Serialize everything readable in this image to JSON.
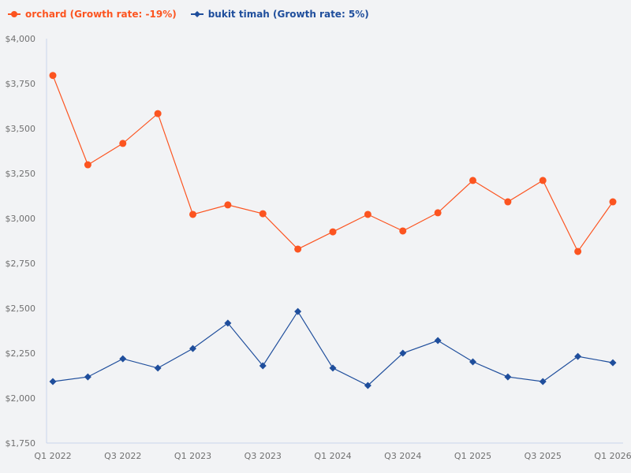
{
  "legend": {
    "items": [
      {
        "label": "orchard (Growth rate: -19%)",
        "color": "#fc5420",
        "marker": "circle"
      },
      {
        "label": "bukit timah (Growth rate: 5%)",
        "color": "#1f4e9c",
        "marker": "diamond"
      }
    ]
  },
  "colors": {
    "background": "#f2f3f5",
    "axis": "#c9d6ea",
    "tick_text": "#707070",
    "orchard": "#fc5420",
    "bukit_timah": "#1f4e9c"
  },
  "chart_data": {
    "type": "line",
    "title": "",
    "xlabel": "",
    "ylabel": "",
    "ylim": [
      1750,
      4000
    ],
    "grid": false,
    "legend_position": "top-left",
    "y_ticks": [
      "$4,000",
      "$3,750",
      "$3,500",
      "$3,250",
      "$3,000",
      "$2,750",
      "$2,500",
      "$2,250",
      "$2,000",
      "$1,750"
    ],
    "y_tick_values": [
      4000,
      3750,
      3500,
      3250,
      3000,
      2750,
      2500,
      2250,
      2000,
      1750
    ],
    "x_tick_labels": [
      "Q1 2022",
      "Q3 2022",
      "Q1 2023",
      "Q3 2023",
      "Q1 2024",
      "Q3 2024",
      "Q1 2025",
      "Q3 2025",
      "Q1 2026"
    ],
    "categories": [
      "Q1 2022",
      "Q2 2022",
      "Q3 2022",
      "Q4 2022",
      "Q1 2023",
      "Q2 2023",
      "Q3 2023",
      "Q4 2023",
      "Q1 2024",
      "Q2 2024",
      "Q3 2024",
      "Q4 2024",
      "Q1 2025",
      "Q2 2025",
      "Q3 2025",
      "Q4 2025",
      "Q1 2026"
    ],
    "series": [
      {
        "name": "orchard (Growth rate: -19%)",
        "color": "#fc5420",
        "marker": "circle",
        "values": [
          3795,
          3298,
          3417,
          3583,
          3022,
          3075,
          3026,
          2829,
          2925,
          3022,
          2930,
          3031,
          3211,
          3092,
          3211,
          2816,
          3092
        ]
      },
      {
        "name": "bukit timah (Growth rate: 5%)",
        "color": "#1f4e9c",
        "marker": "diamond",
        "values": [
          2092,
          2118,
          2219,
          2167,
          2276,
          2417,
          2180,
          2482,
          2167,
          2070,
          2250,
          2320,
          2202,
          2118,
          2092,
          2232,
          2197
        ]
      }
    ]
  }
}
